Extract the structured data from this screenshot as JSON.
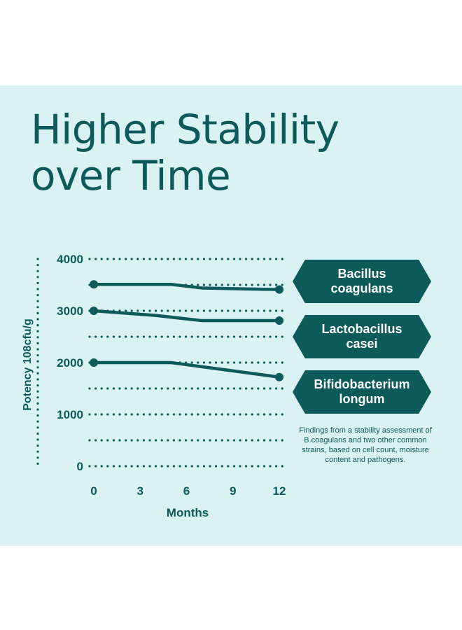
{
  "title": {
    "line1": "Higher Stability",
    "line2": "over Time"
  },
  "colors": {
    "background": "#daf2f4",
    "accent": "#0d5a5a",
    "page": "#ffffff"
  },
  "legend": [
    {
      "line1": "Bacillus",
      "line2": "coagulans"
    },
    {
      "line1": "Lactobacillus",
      "line2": "casei"
    },
    {
      "line1": "Bifidobacterium",
      "line2": "longum"
    }
  ],
  "note": "Findings from a stability assessment of B.coagulans and two other common strains, based on cell count, moisture content and pathogens.",
  "chart_data": {
    "type": "line",
    "xlabel": "Months",
    "ylabel": "Potency 108cfu/g",
    "x_ticks": [
      0,
      3,
      6,
      9,
      12
    ],
    "y_ticks": [
      0,
      1000,
      2000,
      3000,
      4000
    ],
    "xlim": [
      0,
      12
    ],
    "ylim": [
      0,
      4000
    ],
    "grid": "dotted horizontal",
    "legend_position": "right",
    "series": [
      {
        "name": "Bacillus coagulans",
        "x": [
          0,
          5,
          7,
          12
        ],
        "y": [
          3510,
          3510,
          3440,
          3410
        ]
      },
      {
        "name": "Lactobacillus casei",
        "x": [
          0,
          4,
          7,
          12
        ],
        "y": [
          3000,
          2910,
          2810,
          2810
        ]
      },
      {
        "name": "Bifidobacterium longum",
        "x": [
          0,
          5,
          12
        ],
        "y": [
          2000,
          2000,
          1720
        ]
      }
    ]
  }
}
